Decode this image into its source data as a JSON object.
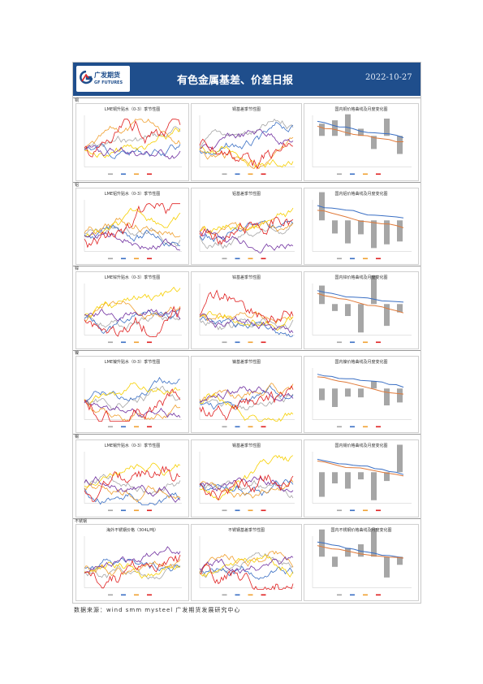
{
  "header": {
    "logo_cn": "广发期货",
    "logo_en": "GF FUTURES",
    "title": "有色金属基差、价差日报",
    "date": "2022-10-27"
  },
  "sections": [
    {
      "label": "铜",
      "charts": [
        "LME铜升贴水（0-3）季节性图",
        "铜基差季节性图",
        "国内铜价格曲线及月度变化图"
      ]
    },
    {
      "label": "铝",
      "charts": [
        "LME铝升贴水（0-3）季节性图",
        "铝基差季节性图",
        "国内铝价格曲线及月度变化图"
      ]
    },
    {
      "label": "锌",
      "charts": [
        "LME锌升贴水（0-3）季节性图",
        "锌基差季节性图",
        "国内锌价格曲线及月度变化图"
      ]
    },
    {
      "label": "镍",
      "charts": [
        "LME镍升贴水（0-3）季节性图",
        "镍基差季节性图",
        "国内镍价格曲线及月度变化图"
      ]
    },
    {
      "label": "锡",
      "charts": [
        "LME锡升贴水（0-3）季节性图",
        "锡基差季节性图",
        "国内锡价格曲线及月度变化图"
      ]
    },
    {
      "label": "不锈钢",
      "charts": [
        "海外不锈钢价格（304L/吨）",
        "不锈钢基差季节性图",
        "国内不锈钢价格曲线及月度变化图"
      ]
    }
  ],
  "footer": "数据来源：wind  smm  mysteel  广发期货发展研究中心",
  "colors": {
    "header": "#1f4e8c",
    "red": "#e02020",
    "blue": "#3a6fc4",
    "orange": "#f0a030",
    "purple": "#7030a0",
    "gray": "#a6a6a6",
    "yellow": "#f7d000"
  }
}
